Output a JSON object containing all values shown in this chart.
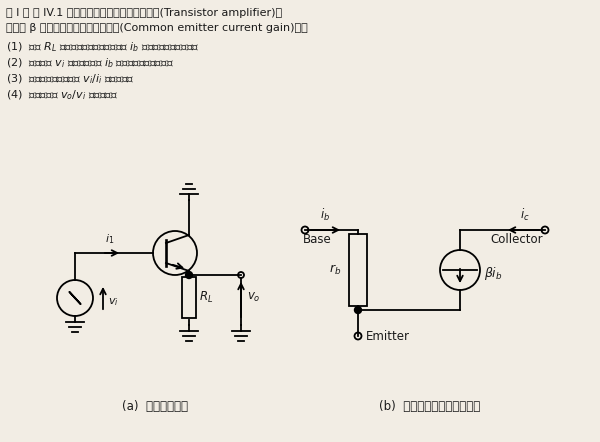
{
  "bg_color": "#f2ede4",
  "text_color": "#1a1a1a",
  "line1": "［ Ⅰ ］ 図 IV.1 にトランジスタ小信号増幅回路(Transistor amplifier)を",
  "line2": "だし， β はエミッタ接地電流増幅率(Common emitter current gain)であ",
  "q1": "(1)  抗抗 $R_L$ に流れる電流をベース電流 $i_b$ の関数として求めよ。",
  "q2": "(2)  入力電圧 $v_i$ をベース電流 $i_b$ の関数として求めよ。",
  "q3": "(3)  増幅回路の入力抗抗 $v_i$/$i_i$ を求めよ。",
  "q4": "(4)  電圧増幅率 $v_o$/$v_i$ を求めよ。",
  "label_a": "(a)  交流成分回路",
  "label_b": "(b)  トランジスタ交流等価回"
}
